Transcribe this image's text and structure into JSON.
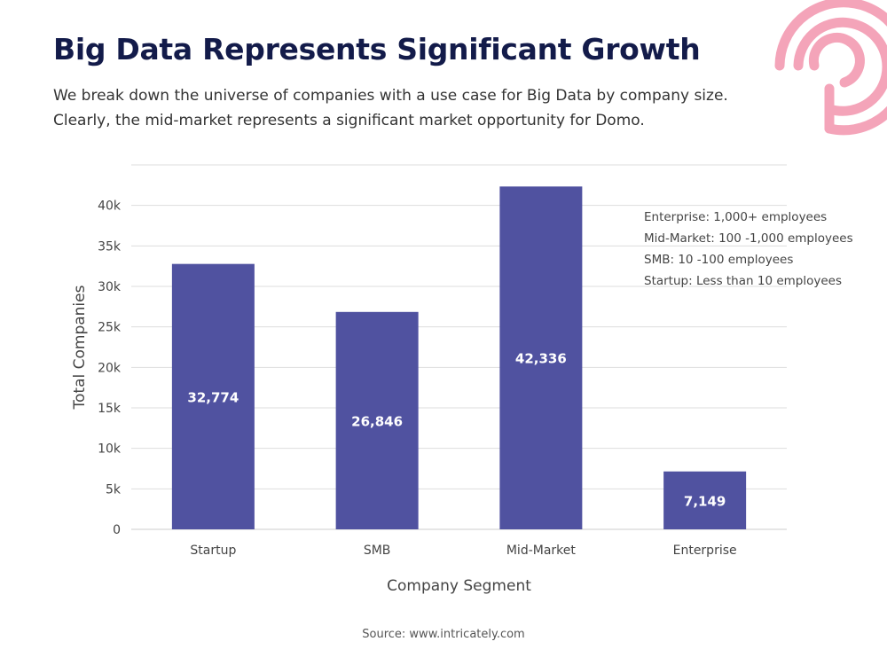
{
  "header": {
    "title": "Big Data Represents Significant Growth",
    "subtitle": "We break down the universe of companies with a use case for Big Data by company size. Clearly, the mid-market represents a significant market opportunity for Domo."
  },
  "logo": {
    "icon": "concentric-ring-logo-icon",
    "color": "#f4a4b9"
  },
  "chart_data": {
    "type": "bar",
    "categories": [
      "Startup",
      "SMB",
      "Mid-Market",
      "Enterprise"
    ],
    "values": [
      32774,
      26846,
      42336,
      7149
    ],
    "data_labels": [
      "32,774",
      "26,846",
      "42,336",
      "7,149"
    ],
    "title": "",
    "xlabel": "Company Segment",
    "ylabel": "Total Companies",
    "ylim": [
      0,
      45000
    ],
    "y_ticks": [
      0,
      5000,
      10000,
      15000,
      20000,
      25000,
      30000,
      35000,
      40000
    ],
    "y_tick_labels": [
      "0",
      "5k",
      "10k",
      "15k",
      "20k",
      "25k",
      "30k",
      "35k",
      "40k"
    ],
    "grid": true,
    "bar_color": "#5052a0",
    "gridline_color": "#dddddd",
    "legend_position": "top-right",
    "annotations": [
      "Enterprise: 1,000+ employees",
      "Mid-Market: 100 -1,000 employees",
      "SMB: 10 -100 employees",
      "Startup: Less than 10 employees"
    ]
  },
  "footer": {
    "source": "Source: www.intricately.com"
  }
}
